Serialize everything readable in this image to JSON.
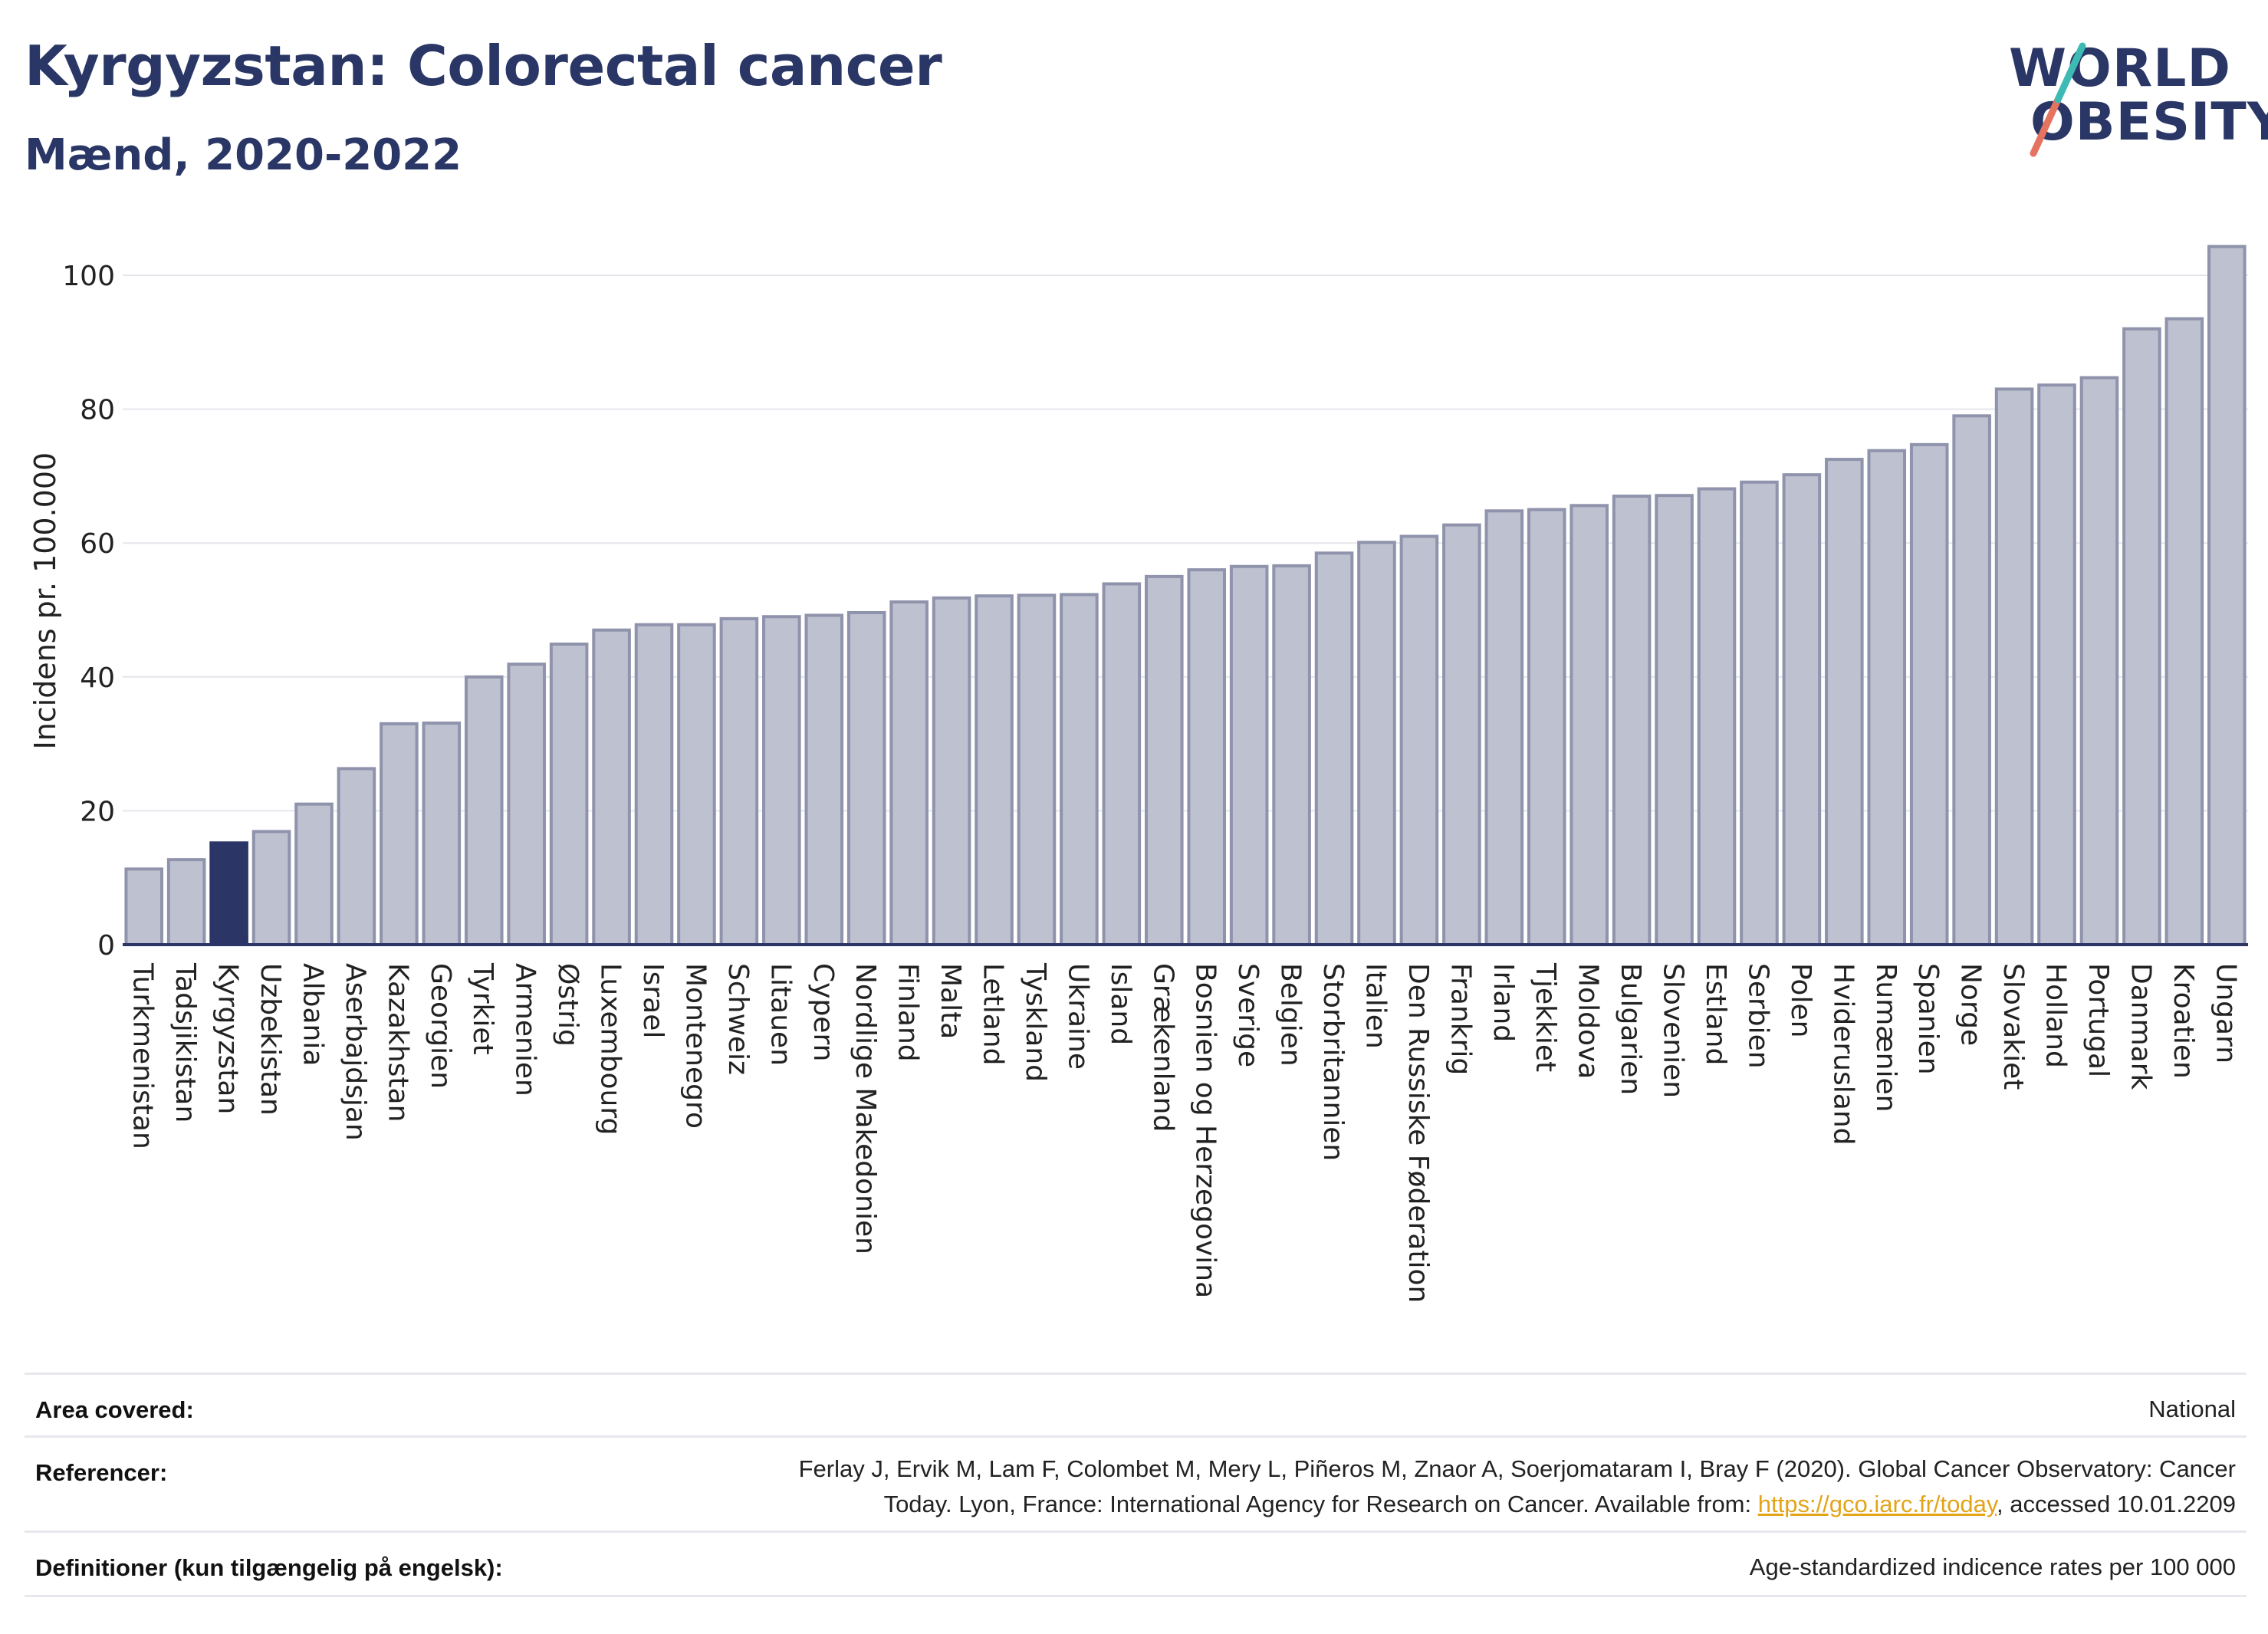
{
  "header": {
    "title": "Kyrgyzstan: Colorectal cancer",
    "subtitle": "Mænd, 2020-2022"
  },
  "logo": {
    "line1": "WORLD",
    "line2": "OBESITY"
  },
  "colors": {
    "bar": "#bec1d0",
    "bar_border": "#8f93ab",
    "highlight": "#2b3566",
    "highlight_border": "#2b3566",
    "text": "#2a3766",
    "link": "#e3a418"
  },
  "chart_data": {
    "type": "bar",
    "ylabel": "Incidens pr. 100.000",
    "ylim": [
      0,
      105
    ],
    "yticks": [
      0,
      20,
      40,
      60,
      80,
      100
    ],
    "grid": true,
    "highlight": "Kyrgyzstan",
    "categories": [
      "Turkmenistan",
      "Tadsjikistan",
      "Kyrgyzstan",
      "Uzbekistan",
      "Albania",
      "Aserbajdsjan",
      "Kazakhstan",
      "Georgien",
      "Tyrkiet",
      "Armenien",
      "Østrig",
      "Luxembourg",
      "Israel",
      "Montenegro",
      "Schweiz",
      "Litauen",
      "Cypern",
      "Nordlige Makedonien",
      "Finland",
      "Malta",
      "Letland",
      "Tyskland",
      "Ukraine",
      "Island",
      "Grækenland",
      "Bosnien og Herzegovina",
      "Sverige",
      "Belgien",
      "Storbritannien",
      "Italien",
      "Den Russiske Føderation",
      "Frankrig",
      "Irland",
      "Tjekkiet",
      "Moldova",
      "Bulgarien",
      "Slovenien",
      "Estland",
      "Serbien",
      "Polen",
      "Hviderusland",
      "Rumænien",
      "Spanien",
      "Norge",
      "Slovakiet",
      "Holland",
      "Portugal",
      "Danmark",
      "Kroatien",
      "Ungarn"
    ],
    "values": [
      11.3,
      12.7,
      15.2,
      16.9,
      21.0,
      26.3,
      33.0,
      33.1,
      40.0,
      41.9,
      44.9,
      47.0,
      47.8,
      47.8,
      48.7,
      49.0,
      49.2,
      49.6,
      51.2,
      51.8,
      52.1,
      52.2,
      52.3,
      53.9,
      55.0,
      56.0,
      56.5,
      56.6,
      58.5,
      60.1,
      61.0,
      62.7,
      64.8,
      65.0,
      65.6,
      67.0,
      67.1,
      68.1,
      69.1,
      70.2,
      72.5,
      73.8,
      74.7,
      79.0,
      83.0,
      83.6,
      84.7,
      92.0,
      93.5,
      104.3
    ]
  },
  "footer": {
    "area_label": "Area covered:",
    "area_value": "National",
    "ref_label": "Referencer:",
    "ref_line1": "Ferlay J, Ervik M, Lam F, Colombet M, Mery L, Piñeros M, Znaor A, Soerjomataram I, Bray F (2020). Global Cancer Observatory: Cancer",
    "ref_line2_pre": "Today. Lyon, France: International Agency for Research on Cancer. Available from: ",
    "ref_link": "https://gco.iarc.fr/today",
    "ref_line2_post": ", accessed 10.01.2209",
    "def_label": "Definitioner (kun tilgængelig på engelsk):",
    "def_value": "Age-standardized indicence rates per 100 000"
  }
}
